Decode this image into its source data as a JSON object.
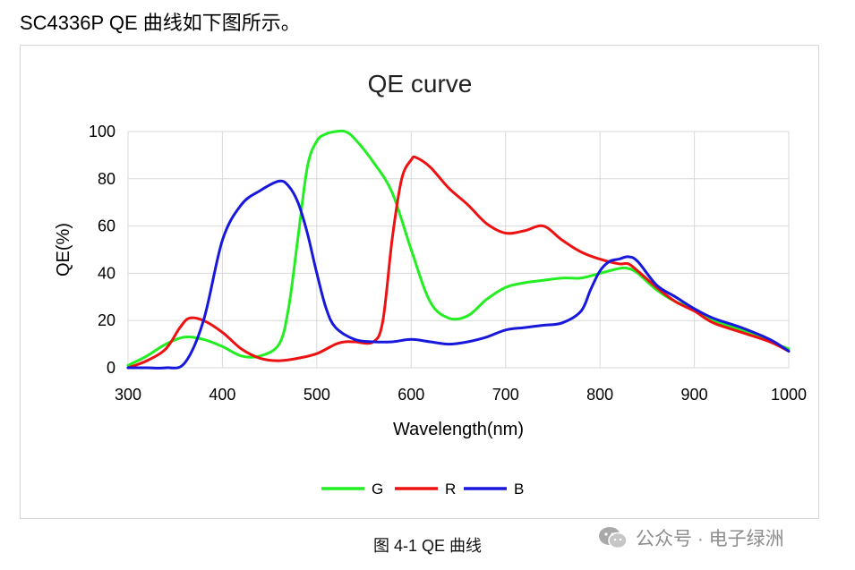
{
  "heading": "SC4336P QE 曲线如下图所示。",
  "caption": "图 4-1 QE 曲线",
  "watermark": {
    "text": "公众号 · 电子绿洲",
    "icon": "wechat-icon"
  },
  "chart_data": {
    "type": "line",
    "title": "QE curve",
    "xlabel": "Wavelength(nm)",
    "ylabel": "QE(%)",
    "xlim": [
      300,
      1000
    ],
    "ylim": [
      0,
      100
    ],
    "xticks": [
      300,
      400,
      500,
      600,
      700,
      800,
      900,
      1000
    ],
    "yticks": [
      0,
      20,
      40,
      60,
      80,
      100
    ],
    "grid": "vertical and horizontal",
    "legend": "bottom",
    "series": [
      {
        "name": "G",
        "color": "#22ee22",
        "x": [
          300,
          320,
          340,
          360,
          380,
          400,
          420,
          440,
          460,
          470,
          480,
          490,
          500,
          510,
          520,
          530,
          540,
          560,
          580,
          600,
          620,
          640,
          660,
          680,
          700,
          720,
          740,
          760,
          780,
          800,
          820,
          830,
          840,
          860,
          880,
          900,
          920,
          950,
          980,
          1000
        ],
        "y": [
          1,
          5,
          10,
          13,
          12,
          9,
          5,
          5,
          10,
          25,
          55,
          85,
          96,
          99,
          100,
          100,
          97,
          87,
          74,
          50,
          28,
          21,
          22,
          29,
          34,
          36,
          37,
          38,
          38,
          40,
          42,
          42,
          40,
          33,
          28,
          25,
          20,
          16,
          11,
          8
        ]
      },
      {
        "name": "R",
        "color": "#ee1111",
        "x": [
          300,
          320,
          340,
          355,
          365,
          380,
          400,
          420,
          440,
          460,
          480,
          500,
          520,
          530,
          540,
          560,
          570,
          580,
          590,
          600,
          605,
          620,
          640,
          660,
          680,
          700,
          720,
          740,
          760,
          780,
          800,
          820,
          830,
          840,
          860,
          880,
          900,
          920,
          950,
          980,
          1000
        ],
        "y": [
          0,
          3,
          8,
          17,
          21,
          20,
          15,
          8,
          4,
          3,
          4,
          6,
          10,
          11,
          11,
          11,
          20,
          55,
          80,
          88,
          89,
          85,
          76,
          69,
          61,
          57,
          58,
          60,
          54,
          49,
          46,
          44,
          44,
          41,
          34,
          28,
          24,
          19,
          15,
          11,
          7
        ]
      },
      {
        "name": "B",
        "color": "#1818dd",
        "x": [
          300,
          320,
          340,
          360,
          380,
          400,
          420,
          440,
          460,
          470,
          480,
          490,
          500,
          510,
          520,
          540,
          560,
          580,
          600,
          620,
          640,
          660,
          680,
          700,
          720,
          740,
          760,
          780,
          790,
          800,
          810,
          820,
          830,
          840,
          860,
          880,
          900,
          920,
          950,
          980,
          1000
        ],
        "y": [
          0,
          0,
          0,
          2,
          20,
          54,
          69,
          75,
          79,
          77,
          70,
          57,
          40,
          25,
          17,
          12,
          11,
          11,
          12,
          11,
          10,
          11,
          13,
          16,
          17,
          18,
          19,
          24,
          33,
          41,
          45,
          46,
          47,
          45,
          35,
          30,
          25,
          21,
          17,
          12,
          7
        ]
      }
    ]
  }
}
